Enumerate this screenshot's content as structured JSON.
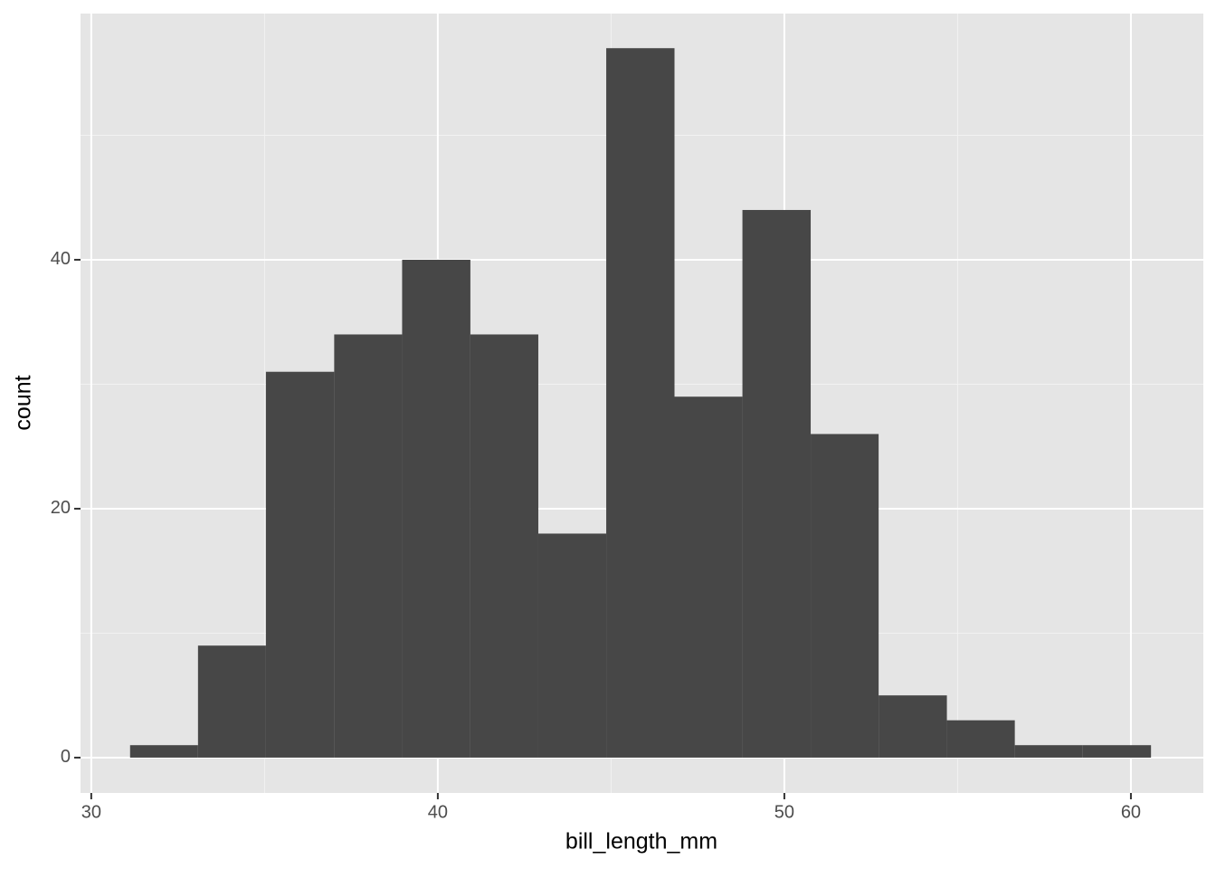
{
  "chart_data": {
    "type": "histogram",
    "x_label": "bill_length_mm",
    "y_label": "count",
    "bins": [
      31.12,
      33.08,
      35.04,
      37.01,
      38.97,
      40.94,
      42.9,
      44.86,
      46.83,
      48.79,
      50.76,
      52.72,
      54.69,
      56.65,
      58.61,
      60.58
    ],
    "values": [
      1,
      9,
      31,
      34,
      40,
      34,
      18,
      57,
      29,
      44,
      26,
      5,
      3,
      1,
      1
    ],
    "color": "#474747",
    "xlim": [
      29.69,
      62.09
    ],
    "xticks": [
      30,
      40,
      50,
      60
    ],
    "xminor": [
      35,
      45,
      55
    ],
    "ylim": [
      -2.84,
      59.78
    ],
    "yticks": [
      0,
      20,
      40
    ],
    "yminor": [
      10,
      30,
      50
    ],
    "grid": true
  }
}
